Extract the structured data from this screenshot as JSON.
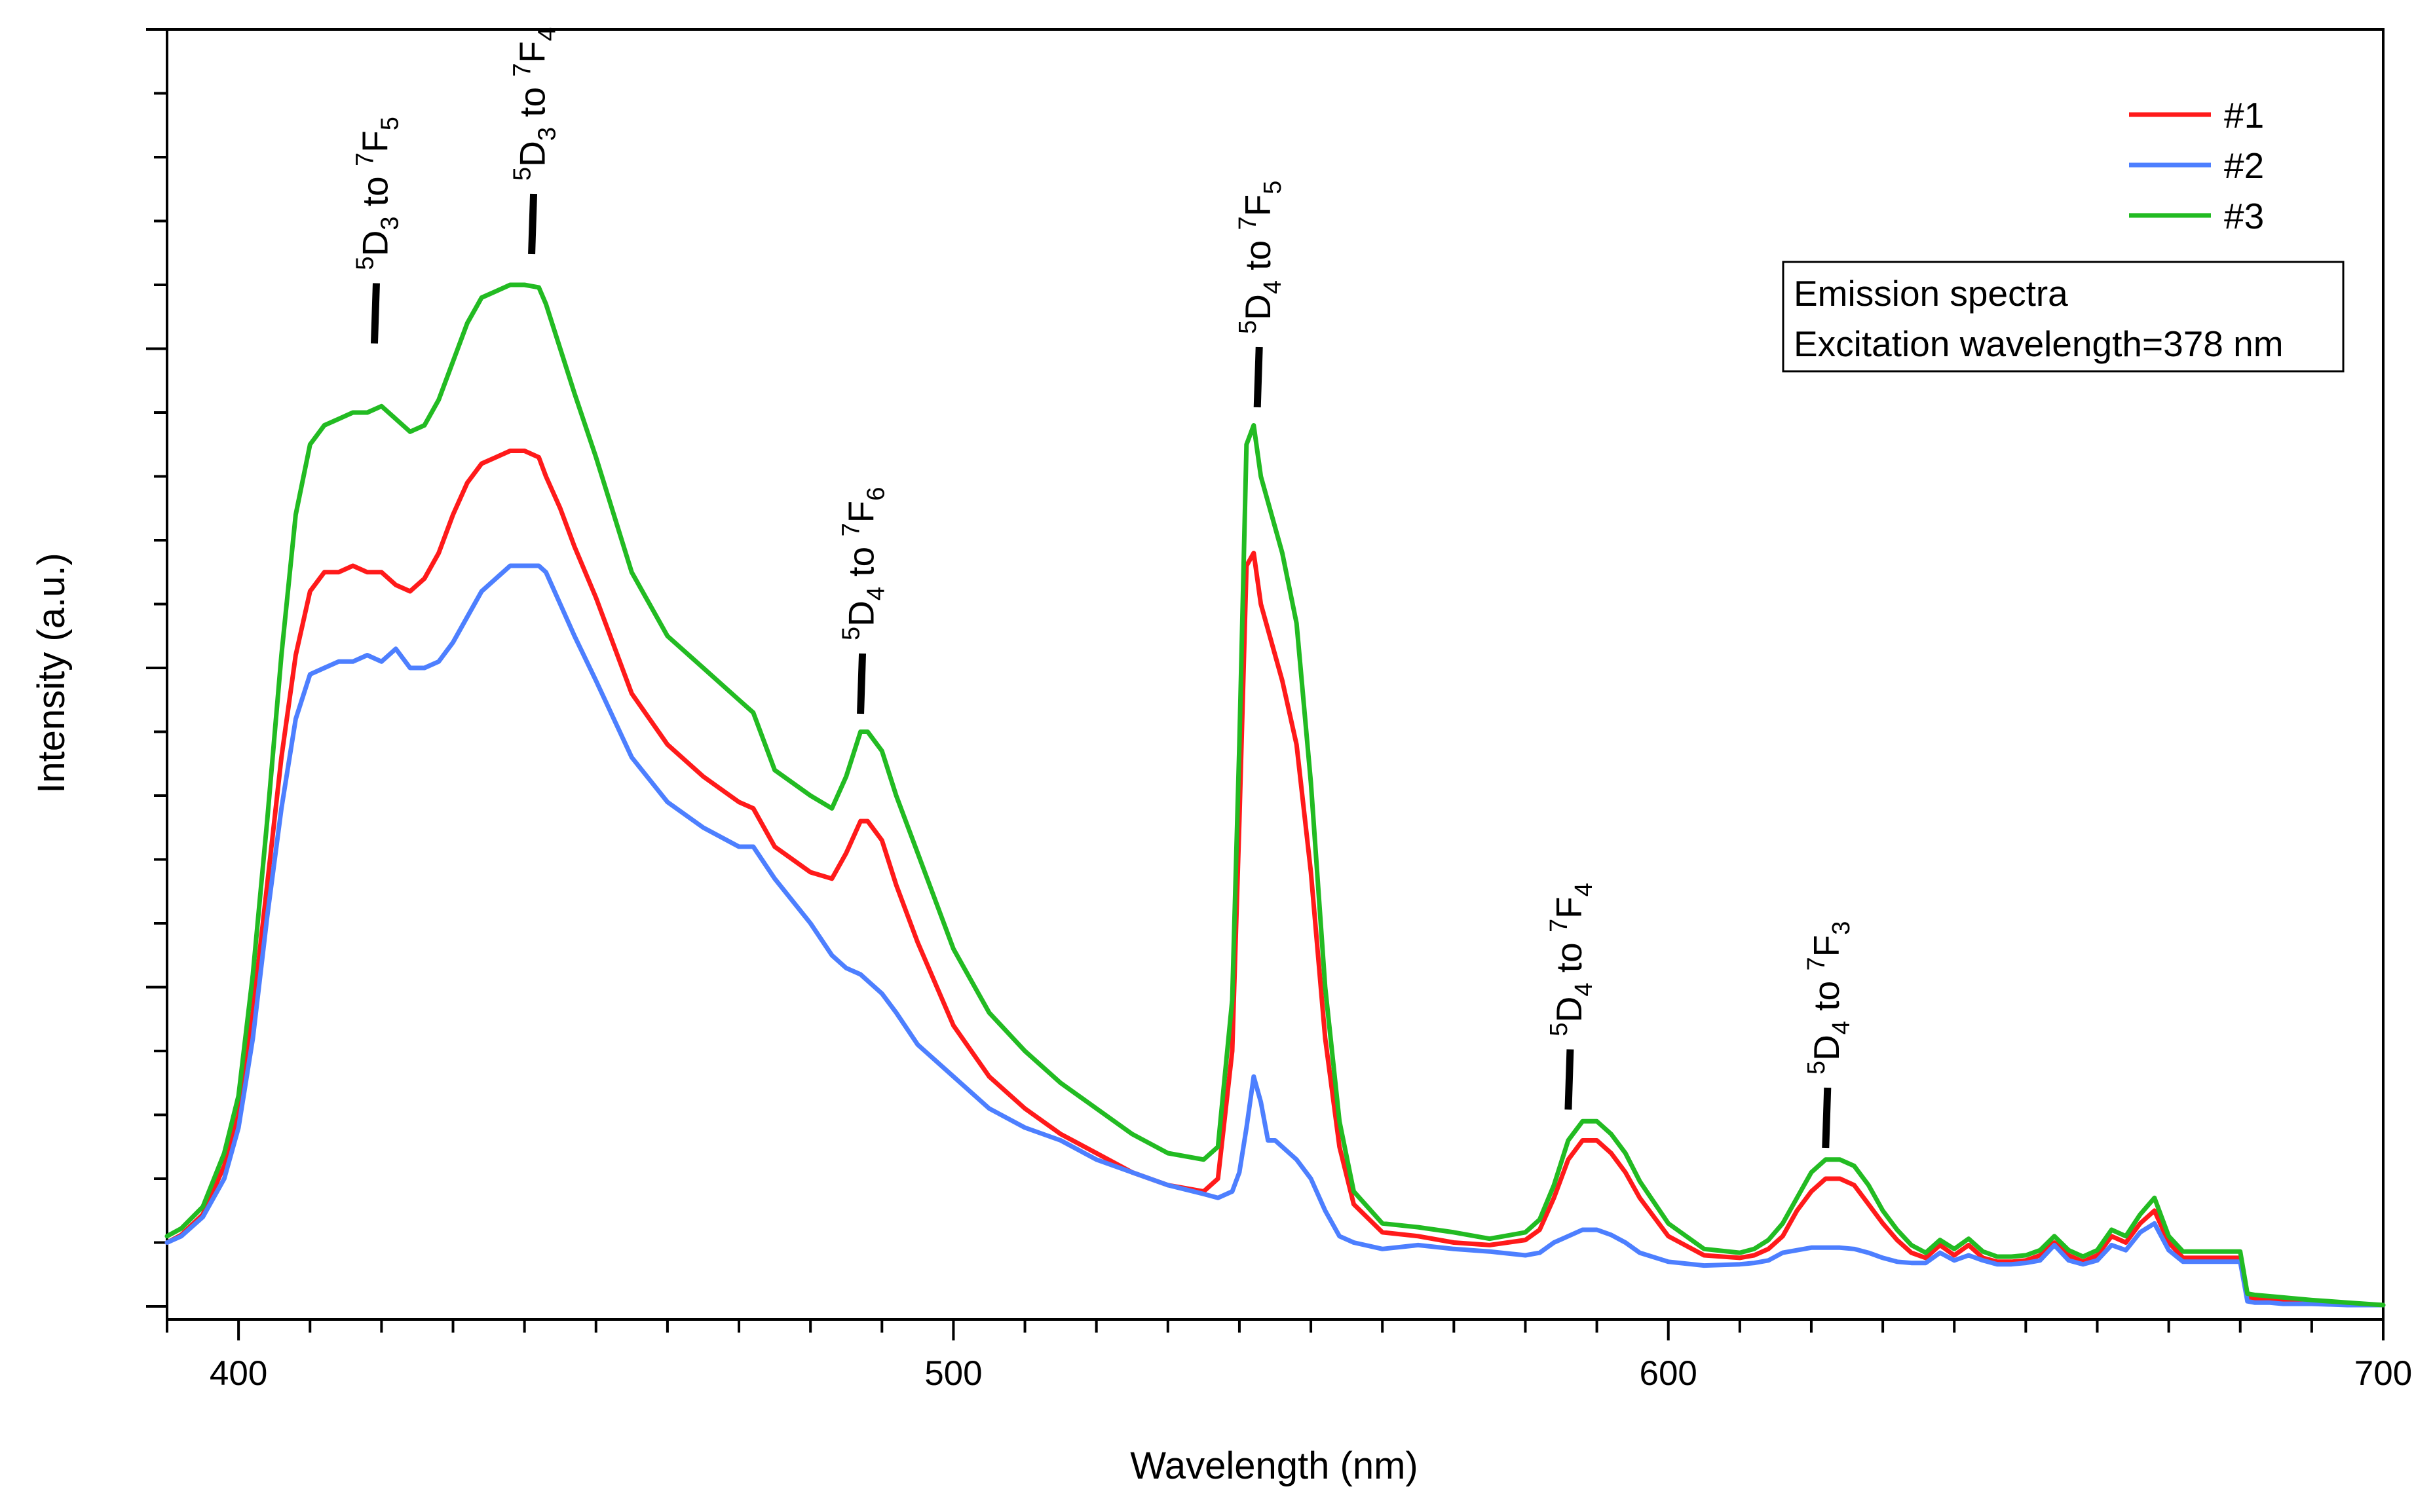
{
  "chart_data": {
    "type": "line",
    "title": "",
    "xlabel": "Wavelength (nm)",
    "ylabel": "Intensity (a.u.)",
    "xlim": [
      390,
      700
    ],
    "ylim": [
      0,
      100
    ],
    "y_tick_labels_shown": false,
    "x_major_ticks": [
      400,
      500,
      600,
      700
    ],
    "x_tick_labels": [
      "400",
      "500",
      "600",
      "700"
    ],
    "x_minor_step": 10,
    "y_major_step": 25,
    "y_minor_step": 5,
    "grid": false,
    "legend_position": "top-right",
    "note_lines": [
      "Emission spectra",
      "Excitation wavelength=378 nm"
    ],
    "x": [
      390,
      392,
      395,
      398,
      400,
      402,
      404,
      406,
      408,
      410,
      412,
      414,
      416,
      418,
      420,
      422,
      424,
      426,
      428,
      430,
      432,
      434,
      436,
      438,
      440,
      442,
      443,
      445,
      447,
      450,
      455,
      460,
      465,
      470,
      472,
      475,
      480,
      483,
      485,
      487,
      488,
      490,
      492,
      495,
      500,
      505,
      510,
      515,
      520,
      525,
      530,
      535,
      537,
      539,
      540,
      541,
      542,
      543,
      544,
      545,
      546,
      548,
      550,
      552,
      554,
      556,
      560,
      565,
      570,
      575,
      580,
      582,
      584,
      586,
      588,
      590,
      592,
      594,
      596,
      600,
      605,
      610,
      612,
      614,
      616,
      618,
      620,
      622,
      624,
      626,
      628,
      630,
      632,
      634,
      636,
      638,
      640,
      642,
      644,
      646,
      648,
      650,
      652,
      654,
      656,
      658,
      660,
      662,
      664,
      666,
      668,
      670,
      672,
      674,
      676,
      678,
      680,
      681,
      682,
      684,
      686,
      690,
      695,
      700
    ],
    "series": [
      {
        "name": "#1",
        "color": "#ff1a1a",
        "values": [
          5.0,
          5.6,
          7.2,
          11.0,
          15.0,
          23.0,
          33.0,
          43.0,
          51.0,
          56.0,
          57.5,
          57.5,
          58.0,
          57.5,
          57.5,
          56.5,
          56.0,
          57.0,
          59.0,
          62.0,
          64.5,
          66.0,
          66.5,
          67.0,
          67.0,
          66.5,
          65.0,
          62.5,
          59.5,
          55.5,
          48.0,
          44.0,
          41.5,
          39.5,
          39.0,
          36.0,
          34.0,
          33.5,
          35.5,
          38.0,
          38.0,
          36.5,
          33.0,
          28.5,
          22.0,
          18.0,
          15.5,
          13.5,
          12.0,
          10.5,
          9.5,
          9.0,
          10.0,
          20.0,
          38.0,
          58.0,
          59.0,
          55.0,
          53.0,
          51.0,
          49.0,
          44.0,
          34.0,
          21.0,
          12.5,
          8.0,
          5.8,
          5.5,
          5.0,
          4.8,
          5.2,
          6.0,
          8.5,
          11.5,
          13.0,
          13.0,
          12.0,
          10.5,
          8.5,
          5.5,
          4.0,
          3.8,
          4.0,
          4.5,
          5.5,
          7.5,
          9.0,
          10.0,
          10.0,
          9.5,
          8.0,
          6.5,
          5.2,
          4.2,
          3.8,
          4.8,
          4.0,
          4.8,
          3.8,
          3.5,
          3.5,
          3.6,
          4.0,
          5.0,
          4.0,
          3.5,
          4.0,
          5.5,
          5.0,
          6.5,
          7.5,
          5.0,
          3.8,
          3.8,
          3.8,
          3.8,
          3.8,
          0.7,
          0.6,
          0.6,
          0.5,
          0.4,
          0.2,
          0.1
        ]
      },
      {
        "name": "#2",
        "color": "#4d7fff",
        "values": [
          5.0,
          5.5,
          7.0,
          10.0,
          14.0,
          21.0,
          30.5,
          39.0,
          46.0,
          49.5,
          50.0,
          50.5,
          50.5,
          51.0,
          50.5,
          51.5,
          50.0,
          50.0,
          50.5,
          52.0,
          54.0,
          56.0,
          57.0,
          58.0,
          58.0,
          58.0,
          57.5,
          55.0,
          52.5,
          49.0,
          43.0,
          39.5,
          37.5,
          36.0,
          36.0,
          33.5,
          30.0,
          27.5,
          26.5,
          26.0,
          25.5,
          24.5,
          23.0,
          20.5,
          18.0,
          15.5,
          14.0,
          13.0,
          11.5,
          10.5,
          9.5,
          8.8,
          8.5,
          9.0,
          10.5,
          14.0,
          18.0,
          16.0,
          13.0,
          13.0,
          12.5,
          11.5,
          10.0,
          7.5,
          5.5,
          5.0,
          4.5,
          4.8,
          4.5,
          4.3,
          4.0,
          4.2,
          5.0,
          5.5,
          6.0,
          6.0,
          5.6,
          5.0,
          4.2,
          3.5,
          3.2,
          3.3,
          3.4,
          3.6,
          4.2,
          4.4,
          4.6,
          4.6,
          4.6,
          4.5,
          4.2,
          3.8,
          3.5,
          3.4,
          3.4,
          4.2,
          3.6,
          4.0,
          3.6,
          3.3,
          3.3,
          3.4,
          3.6,
          4.8,
          3.6,
          3.3,
          3.6,
          4.8,
          4.4,
          5.8,
          6.5,
          4.4,
          3.5,
          3.5,
          3.5,
          3.5,
          3.5,
          0.4,
          0.3,
          0.3,
          0.2,
          0.2,
          0.1,
          0.1
        ]
      },
      {
        "name": "#3",
        "color": "#22bb22",
        "values": [
          5.5,
          6.1,
          7.8,
          12.0,
          16.5,
          26.0,
          38.0,
          51.0,
          62.0,
          67.5,
          69.0,
          69.5,
          70.0,
          70.0,
          70.5,
          69.5,
          68.5,
          69.0,
          71.0,
          74.0,
          77.0,
          79.0,
          79.5,
          80.0,
          80.0,
          79.8,
          78.5,
          75.0,
          71.5,
          66.5,
          57.5,
          52.5,
          50.0,
          47.5,
          46.5,
          42.0,
          40.0,
          39.0,
          41.5,
          45.0,
          45.0,
          43.5,
          40.0,
          35.5,
          28.0,
          23.0,
          20.0,
          17.5,
          15.5,
          13.5,
          12.0,
          11.5,
          12.5,
          24.0,
          44.0,
          67.5,
          69.0,
          65.0,
          63.0,
          61.0,
          59.0,
          53.5,
          41.0,
          25.0,
          14.5,
          9.0,
          6.5,
          6.2,
          5.8,
          5.3,
          5.8,
          6.8,
          9.5,
          13.0,
          14.5,
          14.5,
          13.5,
          12.0,
          9.8,
          6.5,
          4.5,
          4.2,
          4.5,
          5.2,
          6.5,
          8.5,
          10.5,
          11.5,
          11.5,
          11.0,
          9.5,
          7.5,
          6.0,
          4.8,
          4.2,
          5.2,
          4.5,
          5.3,
          4.3,
          3.9,
          3.9,
          4.0,
          4.4,
          5.5,
          4.4,
          3.9,
          4.4,
          6.0,
          5.5,
          7.2,
          8.5,
          5.5,
          4.3,
          4.3,
          4.3,
          4.3,
          4.3,
          1.0,
          0.9,
          0.8,
          0.7,
          0.5,
          0.3,
          0.1
        ]
      }
    ],
    "annotations": [
      {
        "upper": "5",
        "main": "D",
        "lower": "3",
        "mid": " to ",
        "upper2": "7",
        "main2": "F",
        "lower2": "5",
        "x": 419,
        "y": 75
      },
      {
        "upper": "5",
        "main": "D",
        "lower": "3",
        "mid": " to ",
        "upper2": "7",
        "main2": "F",
        "lower2": "4",
        "x": 441,
        "y": 82
      },
      {
        "upper": "5",
        "main": "D",
        "lower": "4",
        "mid": " to ",
        "upper2": "7",
        "main2": "F",
        "lower2": "6",
        "x": 487,
        "y": 46
      },
      {
        "upper": "5",
        "main": "D",
        "lower": "4",
        "mid": " to ",
        "upper2": "7",
        "main2": "F",
        "lower2": "5",
        "x": 542.5,
        "y": 70
      },
      {
        "upper": "5",
        "main": "D",
        "lower": "4",
        "mid": " to ",
        "upper2": "7",
        "main2": "F",
        "lower2": "4",
        "x": 586,
        "y": 15
      },
      {
        "upper": "5",
        "main": "D",
        "lower": "4",
        "mid": " to ",
        "upper2": "7",
        "main2": "F",
        "lower2": "3",
        "x": 622,
        "y": 12
      }
    ]
  }
}
